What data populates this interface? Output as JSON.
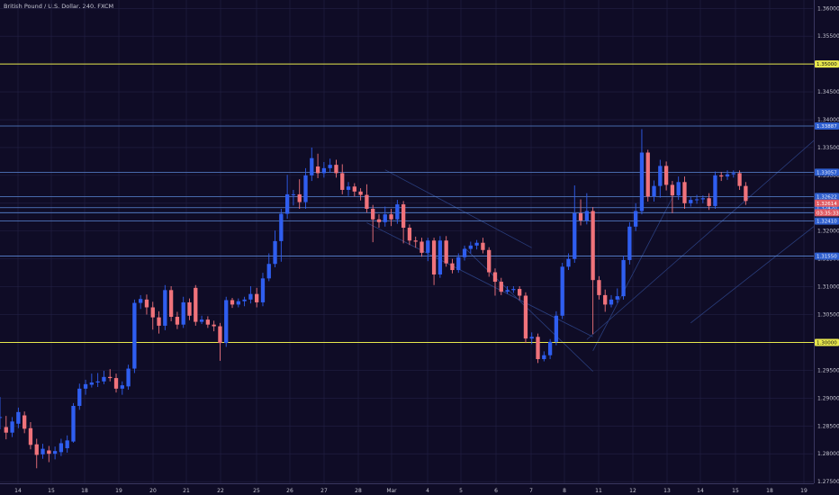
{
  "chart_data": {
    "type": "candlestick",
    "title": "British Pound / U.S. Dollar, 240, FXCM",
    "x_ticks": [
      "14",
      "15",
      "18",
      "19",
      "20",
      "21",
      "22",
      "25",
      "26",
      "27",
      "28",
      "Mar",
      "4",
      "5",
      "6",
      "7",
      "8",
      "11",
      "12",
      "13",
      "14",
      "15",
      "18",
      "19"
    ],
    "y_ticks": [
      "1.36000",
      "1.35500",
      "1.35000",
      "1.34500",
      "1.34000",
      "1.33500",
      "1.33000",
      "1.32500",
      "1.32000",
      "1.31500",
      "1.31000",
      "1.30500",
      "1.30000",
      "1.29500",
      "1.29000",
      "1.28500",
      "1.28000",
      "1.27500"
    ],
    "ylim": [
      1.2747,
      1.3615
    ],
    "levels": [
      {
        "label": "1.35000",
        "value": 1.35,
        "color": "#e8e84d",
        "kind": "yellow"
      },
      {
        "label": "1.33887",
        "value": 1.33887,
        "color": "#5a86d6",
        "kind": "blue"
      },
      {
        "label": "1.33057",
        "value": 1.33057,
        "color": "#5a86d6",
        "kind": "blue"
      },
      {
        "label": "1.32622",
        "value": 1.3262,
        "color": "#5a86d6",
        "kind": "blue"
      },
      {
        "label": "1.32420",
        "value": 1.3242,
        "color": "#5a86d6",
        "kind": "blue"
      },
      {
        "label": "1.32410",
        "value": 1.3233,
        "color": "#5a86d6",
        "kind": "blue"
      },
      {
        "label": "1.32410",
        "value": 1.3218,
        "color": "#5a86d6",
        "kind": "blue"
      },
      {
        "label": "1.31550",
        "value": 1.3155,
        "color": "#5a86d6",
        "kind": "blue"
      },
      {
        "label": "1.30000",
        "value": 1.3,
        "color": "#e8e84d",
        "kind": "yellow"
      }
    ],
    "price_tag": {
      "label": "1.32614",
      "value": 1.325,
      "color": "#e05a63"
    },
    "countdown_tag": {
      "label": "03:35:33",
      "value": 1.3233,
      "color": "#e05a63"
    },
    "colors": {
      "up": "#2f5ef0",
      "down": "#f0737b",
      "grid": "#232045",
      "trend": "#2a3e7d"
    },
    "trendlines": [
      {
        "from": [
          1.331,
          63
        ],
        "to": [
          1.317,
          87
        ]
      },
      {
        "from": [
          1.3215,
          60
        ],
        "to": [
          1.301,
          97
        ]
      },
      {
        "from": [
          1.317,
          76
        ],
        "to": [
          1.2948,
          97
        ]
      },
      {
        "from": [
          1.2985,
          97
        ],
        "to": [
          1.326,
          110
        ]
      },
      {
        "from": [
          1.3005,
          96
        ],
        "to": [
          1.339,
          136
        ]
      },
      {
        "from": [
          1.3035,
          113
        ],
        "to": [
          1.325,
          138
        ]
      }
    ],
    "candles": [
      [
        1.2866,
        1.2866,
        1.2902,
        1.2844
      ],
      [
        1.2848,
        1.2838,
        1.2868,
        1.2826
      ],
      [
        1.2838,
        1.2858,
        1.2866,
        1.283
      ],
      [
        1.2854,
        1.2875,
        1.2883,
        1.2846
      ],
      [
        1.2869,
        1.2845,
        1.2876,
        1.2837
      ],
      [
        1.2846,
        1.2816,
        1.2857,
        1.2808
      ],
      [
        1.2817,
        1.2798,
        1.2827,
        1.2774
      ],
      [
        1.2799,
        1.2809,
        1.2818,
        1.2791
      ],
      [
        1.2806,
        1.28,
        1.2814,
        1.2785
      ],
      [
        1.28,
        1.2805,
        1.2813,
        1.279
      ],
      [
        1.2803,
        1.2819,
        1.2827,
        1.2796
      ],
      [
        1.281,
        1.2824,
        1.2833,
        1.2802
      ],
      [
        1.2822,
        1.2886,
        1.2891,
        1.282
      ],
      [
        1.2886,
        1.2917,
        1.2926,
        1.2879
      ],
      [
        1.2917,
        1.2925,
        1.2933,
        1.2906
      ],
      [
        1.2924,
        1.2928,
        1.2944,
        1.2919
      ],
      [
        1.2928,
        1.293,
        1.2945,
        1.292
      ],
      [
        1.293,
        1.2938,
        1.2949,
        1.2925
      ],
      [
        1.2938,
        1.2936,
        1.2952,
        1.293
      ],
      [
        1.2936,
        1.2917,
        1.2944,
        1.291
      ],
      [
        1.2917,
        1.2923,
        1.293,
        1.2906
      ],
      [
        1.2921,
        1.2953,
        1.296,
        1.2915
      ],
      [
        1.2953,
        1.3071,
        1.3077,
        1.2945
      ],
      [
        1.3071,
        1.3078,
        1.3085,
        1.306
      ],
      [
        1.3077,
        1.3063,
        1.3086,
        1.305
      ],
      [
        1.3063,
        1.3045,
        1.3073,
        1.3023
      ],
      [
        1.3045,
        1.303,
        1.3056,
        1.3016
      ],
      [
        1.303,
        1.3094,
        1.3103,
        1.3022
      ],
      [
        1.3094,
        1.3046,
        1.3101,
        1.3038
      ],
      [
        1.3046,
        1.3032,
        1.3055,
        1.3024
      ],
      [
        1.3032,
        1.3072,
        1.3082,
        1.3026
      ],
      [
        1.3072,
        1.3048,
        1.3079,
        1.304
      ],
      [
        1.3098,
        1.3037,
        1.3103,
        1.303
      ],
      [
        1.3037,
        1.3041,
        1.3048,
        1.3033
      ],
      [
        1.3041,
        1.3032,
        1.3047,
        1.3026
      ],
      [
        1.3032,
        1.3029,
        1.3039,
        1.302
      ],
      [
        1.3029,
        1.2999,
        1.3035,
        1.2967
      ],
      [
        1.2999,
        1.3076,
        1.3082,
        1.2992
      ],
      [
        1.3076,
        1.3068,
        1.308,
        1.3062
      ],
      [
        1.3068,
        1.3074,
        1.3079,
        1.3063
      ],
      [
        1.3074,
        1.3077,
        1.3082,
        1.3065
      ],
      [
        1.3077,
        1.3087,
        1.3101,
        1.307
      ],
      [
        1.3087,
        1.3072,
        1.3098,
        1.3063
      ],
      [
        1.3072,
        1.3115,
        1.3125,
        1.3065
      ],
      [
        1.3115,
        1.3141,
        1.316,
        1.311
      ],
      [
        1.3141,
        1.3182,
        1.3201,
        1.3135
      ],
      [
        1.3182,
        1.3231,
        1.324,
        1.3145
      ],
      [
        1.3231,
        1.3266,
        1.3301,
        1.3222
      ],
      [
        1.3266,
        1.3266,
        1.3274,
        1.3246
      ],
      [
        1.3266,
        1.3252,
        1.3293,
        1.324
      ],
      [
        1.3252,
        1.33,
        1.3313,
        1.324
      ],
      [
        1.33,
        1.3331,
        1.335,
        1.329
      ],
      [
        1.3316,
        1.3304,
        1.3339,
        1.3295
      ],
      [
        1.3304,
        1.3313,
        1.3324,
        1.3296
      ],
      [
        1.3313,
        1.3319,
        1.333,
        1.3305
      ],
      [
        1.3319,
        1.3304,
        1.3328,
        1.3296
      ],
      [
        1.3304,
        1.3274,
        1.332,
        1.3266
      ],
      [
        1.3274,
        1.328,
        1.3288,
        1.3263
      ],
      [
        1.328,
        1.3271,
        1.3286,
        1.3262
      ],
      [
        1.3271,
        1.3265,
        1.3277,
        1.3255
      ],
      [
        1.3265,
        1.324,
        1.3284,
        1.3233
      ],
      [
        1.324,
        1.3221,
        1.3247,
        1.318
      ],
      [
        1.3221,
        1.3216,
        1.323,
        1.3206
      ],
      [
        1.3216,
        1.323,
        1.3244,
        1.3208
      ],
      [
        1.323,
        1.3221,
        1.324,
        1.3209
      ],
      [
        1.3221,
        1.3248,
        1.3256,
        1.3213
      ],
      [
        1.3248,
        1.3206,
        1.3254,
        1.3178
      ],
      [
        1.3206,
        1.3183,
        1.3212,
        1.3175
      ],
      [
        1.3183,
        1.3181,
        1.319,
        1.317
      ],
      [
        1.3181,
        1.3161,
        1.3188,
        1.3154
      ],
      [
        1.3161,
        1.3183,
        1.3188,
        1.3146
      ],
      [
        1.3183,
        1.3122,
        1.3188,
        1.3103
      ],
      [
        1.3122,
        1.3183,
        1.3191,
        1.3116
      ],
      [
        1.3183,
        1.3142,
        1.3191,
        1.3136
      ],
      [
        1.3142,
        1.313,
        1.315,
        1.3124
      ],
      [
        1.313,
        1.3153,
        1.316,
        1.3125
      ],
      [
        1.3153,
        1.3168,
        1.3174,
        1.3147
      ],
      [
        1.3168,
        1.3174,
        1.3181,
        1.316
      ],
      [
        1.3174,
        1.3179,
        1.3184,
        1.3167
      ],
      [
        1.3179,
        1.3166,
        1.3188,
        1.316
      ],
      [
        1.3166,
        1.3126,
        1.3171,
        1.3118
      ],
      [
        1.3126,
        1.3109,
        1.3133,
        1.3084
      ],
      [
        1.3109,
        1.3091,
        1.3116,
        1.3085
      ],
      [
        1.3091,
        1.3094,
        1.3101,
        1.3087
      ],
      [
        1.3094,
        1.3096,
        1.3101,
        1.3089
      ],
      [
        1.3096,
        1.3084,
        1.3101,
        1.3076
      ],
      [
        1.3084,
        1.3007,
        1.309,
        1.2999
      ],
      [
        1.3007,
        1.301,
        1.3018,
        1.2997
      ],
      [
        1.301,
        1.297,
        1.3016,
        1.2963
      ],
      [
        1.297,
        1.2977,
        1.2984,
        1.2966
      ],
      [
        1.2977,
        1.3001,
        1.3006,
        1.297
      ],
      [
        1.3001,
        1.3048,
        1.3056,
        1.2995
      ],
      [
        1.3048,
        1.3136,
        1.3143,
        1.3042
      ],
      [
        1.3136,
        1.315,
        1.316,
        1.313
      ],
      [
        1.315,
        1.3232,
        1.3282,
        1.3143
      ],
      [
        1.3232,
        1.3219,
        1.3257,
        1.321
      ],
      [
        1.3219,
        1.3236,
        1.3268,
        1.3212
      ],
      [
        1.3236,
        1.3112,
        1.3243,
        1.3015
      ],
      [
        1.3112,
        1.3085,
        1.3119,
        1.3077
      ],
      [
        1.3085,
        1.3068,
        1.3095,
        1.3055
      ],
      [
        1.3068,
        1.3077,
        1.3085,
        1.3063
      ],
      [
        1.3077,
        1.3083,
        1.3097,
        1.3071
      ],
      [
        1.3083,
        1.3148,
        1.3156,
        1.3077
      ],
      [
        1.3148,
        1.3208,
        1.3216,
        1.314
      ],
      [
        1.3208,
        1.3236,
        1.325,
        1.32
      ],
      [
        1.3236,
        1.3341,
        1.3383,
        1.323
      ],
      [
        1.3341,
        1.3262,
        1.3346,
        1.3253
      ],
      [
        1.3262,
        1.3281,
        1.3291,
        1.3253
      ],
      [
        1.3281,
        1.3317,
        1.3328,
        1.326
      ],
      [
        1.3317,
        1.3283,
        1.3325,
        1.3273
      ],
      [
        1.3283,
        1.3264,
        1.329,
        1.3232
      ],
      [
        1.3264,
        1.3288,
        1.3298,
        1.3256
      ],
      [
        1.3288,
        1.325,
        1.3298,
        1.324
      ],
      [
        1.325,
        1.3256,
        1.3261,
        1.3244
      ],
      [
        1.3256,
        1.3257,
        1.3265,
        1.3249
      ],
      [
        1.3257,
        1.3259,
        1.3264,
        1.325
      ],
      [
        1.3259,
        1.3245,
        1.3268,
        1.3238
      ],
      [
        1.3245,
        1.33,
        1.3307,
        1.324
      ],
      [
        1.33,
        1.3298,
        1.3306,
        1.329
      ],
      [
        1.3298,
        1.3302,
        1.3309,
        1.3292
      ],
      [
        1.3302,
        1.3304,
        1.3309,
        1.3296
      ],
      [
        1.3304,
        1.3281,
        1.3309,
        1.3274
      ],
      [
        1.3281,
        1.3254,
        1.3288,
        1.3247
      ]
    ]
  }
}
